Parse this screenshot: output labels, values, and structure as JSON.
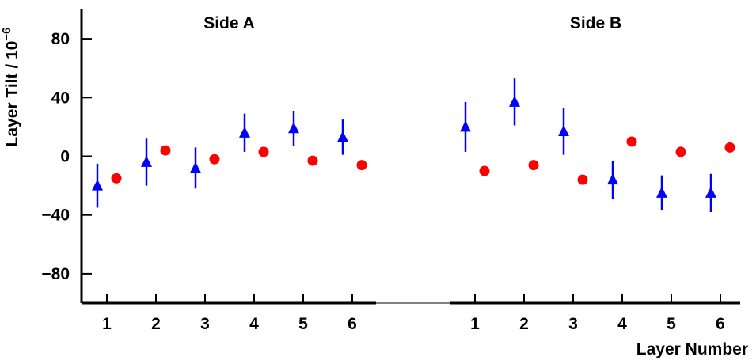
{
  "chart_data": [
    {
      "type": "scatter",
      "title": "Side A",
      "y_label": "Layer Tilt / 10",
      "y_label_exponent": "−6",
      "categories": [
        "1",
        "2",
        "3",
        "4",
        "5",
        "6"
      ],
      "ylim": [
        -100,
        100
      ],
      "yticks": [
        {
          "value": -80,
          "label": "−80"
        },
        {
          "value": -40,
          "label": "−40"
        },
        0,
        40,
        80
      ],
      "series": [
        {
          "color": "#0000ff",
          "marker": "triangle",
          "values": [
            -20,
            -4,
            -8,
            16,
            19,
            13
          ],
          "errors": [
            15,
            16,
            14,
            13,
            12,
            12
          ]
        },
        {
          "color": "#ff0000",
          "marker": "circle",
          "values": [
            -15,
            4,
            -2,
            3,
            -3,
            -6
          ]
        }
      ]
    },
    {
      "type": "scatter",
      "title": "Side B",
      "x_label": "Layer Number",
      "categories": [
        "1",
        "2",
        "3",
        "4",
        "5",
        "6"
      ],
      "ylim": [
        -100,
        100
      ],
      "series": [
        {
          "color": "#0000ff",
          "marker": "triangle",
          "values": [
            20,
            37,
            17,
            -16,
            -25,
            -25
          ],
          "errors": [
            17,
            16,
            16,
            13,
            12,
            13
          ]
        },
        {
          "color": "#ff0000",
          "marker": "circle",
          "values": [
            -10,
            -6,
            -16,
            10,
            3,
            6
          ]
        }
      ]
    }
  ]
}
